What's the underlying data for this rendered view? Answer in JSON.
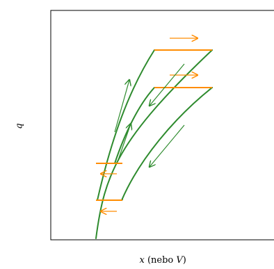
{
  "axes": {
    "ylabel": "q",
    "xlabel_var": "x",
    "xlabel_paren": " (nebo ",
    "xlabel_alt": "V",
    "xlabel_close": ")"
  },
  "colors": {
    "curve": "#2e8b2e",
    "transfer": "#ff8c00",
    "frame": "#000000"
  }
}
